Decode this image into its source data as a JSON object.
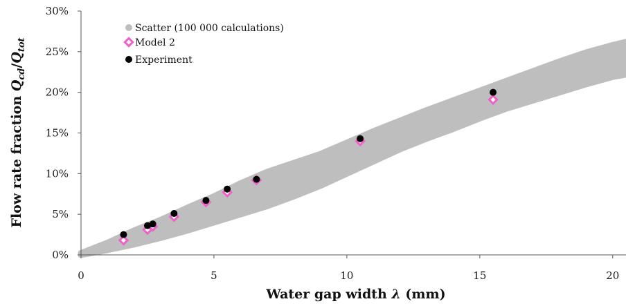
{
  "chart_data": {
    "type": "scatter",
    "xlabel": "Water gap width λ (mm)",
    "ylabel": "Flow rate fraction Qcd/Qtot",
    "xlim": [
      0,
      20.5
    ],
    "ylim": [
      0,
      0.3
    ],
    "x_ticks": [
      0,
      5,
      10,
      15,
      20
    ],
    "x_tick_labels": [
      "0",
      "5",
      "10",
      "15",
      "20"
    ],
    "y_ticks": [
      0,
      0.05,
      0.1,
      0.15,
      0.2,
      0.25,
      0.3
    ],
    "y_tick_labels": [
      "0%",
      "5%",
      "10%",
      "15%",
      "20%",
      "25%",
      "30%"
    ],
    "grid": false,
    "legend_position": "top-left",
    "colors": {
      "scatter": "#bebebe",
      "model": "#f060c8",
      "experiment": "#000000"
    },
    "series": [
      {
        "name": "Scatter (100 000 calculations)",
        "kind": "band",
        "x": [
          0,
          1,
          2,
          3,
          4,
          5,
          6,
          7,
          8,
          9,
          10,
          11,
          12,
          13,
          14,
          15,
          16,
          17,
          18,
          19,
          20,
          20.5
        ],
        "lower": [
          0.0,
          0.006,
          0.013,
          0.021,
          0.03,
          0.04,
          0.05,
          0.06,
          0.072,
          0.085,
          0.1,
          0.115,
          0.13,
          0.143,
          0.155,
          0.168,
          0.18,
          0.19,
          0.2,
          0.21,
          0.219,
          0.222
        ],
        "upper": [
          0.002,
          0.015,
          0.03,
          0.043,
          0.058,
          0.072,
          0.088,
          0.102,
          0.113,
          0.124,
          0.138,
          0.152,
          0.165,
          0.178,
          0.19,
          0.202,
          0.214,
          0.226,
          0.238,
          0.249,
          0.258,
          0.262
        ]
      },
      {
        "name": "Model 2",
        "kind": "points",
        "x": [
          1.6,
          2.5,
          2.7,
          3.5,
          4.7,
          5.5,
          6.6,
          10.5,
          15.5
        ],
        "y": [
          0.018,
          0.031,
          0.035,
          0.047,
          0.065,
          0.077,
          0.092,
          0.14,
          0.191
        ]
      },
      {
        "name": "Experiment",
        "kind": "points",
        "x": [
          1.6,
          2.5,
          2.7,
          3.5,
          4.7,
          5.5,
          6.6,
          10.5,
          15.5
        ],
        "y": [
          0.025,
          0.036,
          0.038,
          0.051,
          0.067,
          0.081,
          0.093,
          0.143,
          0.2
        ]
      }
    ]
  }
}
